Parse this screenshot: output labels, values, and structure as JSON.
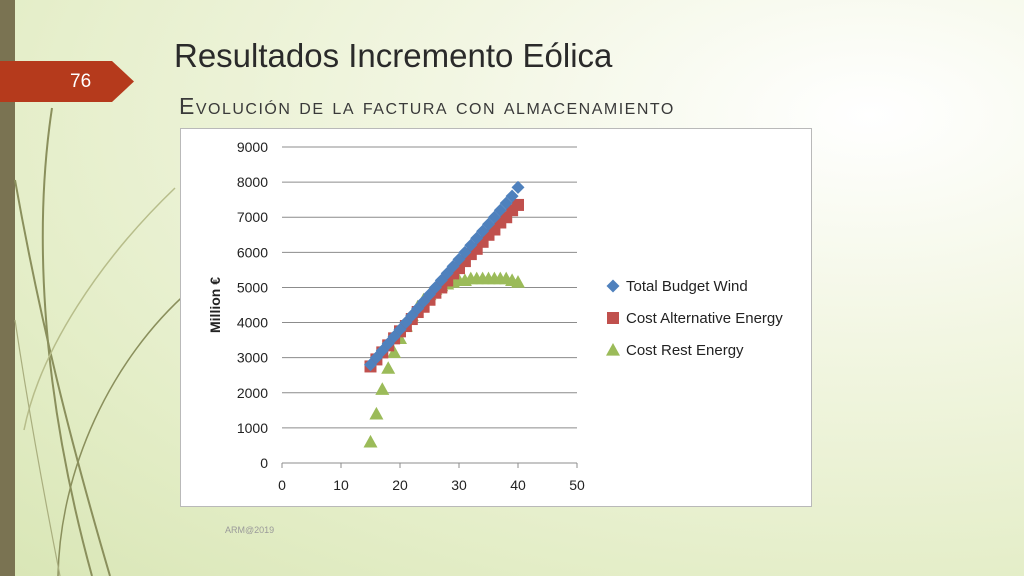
{
  "slide": {
    "number": "76",
    "title": "Resultados Incremento Eólica",
    "subtitle": "Evolución de la factura con almacenamiento",
    "footer": "ARM@2019"
  },
  "colors": {
    "accent": "#b53a1c",
    "sidebar": "#7a7352",
    "deco_lines": "#8a8f5c"
  },
  "chart_data": {
    "type": "scatter",
    "title": "",
    "xlabel": "",
    "ylabel": "Million €",
    "xlim": [
      0,
      50
    ],
    "ylim": [
      0,
      9000
    ],
    "xticks": [
      0,
      10,
      20,
      30,
      40,
      50
    ],
    "yticks": [
      0,
      1000,
      2000,
      3000,
      4000,
      5000,
      6000,
      7000,
      8000,
      9000
    ],
    "grid": "horizontal",
    "legend": "right",
    "x": [
      15,
      16,
      17,
      18,
      19,
      20,
      21,
      22,
      23,
      24,
      25,
      26,
      27,
      28,
      29,
      30,
      31,
      32,
      33,
      34,
      35,
      36,
      37,
      38,
      39,
      40
    ],
    "series": [
      {
        "name": "Total Budget Wind",
        "marker": "diamond",
        "color": "#4f81bd",
        "values": [
          2800,
          3000,
          3200,
          3400,
          3600,
          3800,
          4000,
          4200,
          4400,
          4600,
          4800,
          5000,
          5200,
          5400,
          5600,
          5800,
          6000,
          6200,
          6400,
          6600,
          6800,
          7000,
          7200,
          7400,
          7600,
          7850
        ]
      },
      {
        "name": "Cost Alternative Energy",
        "marker": "square",
        "color": "#c0504d",
        "values": [
          2750,
          2950,
          3150,
          3350,
          3550,
          3750,
          3900,
          4100,
          4300,
          4450,
          4650,
          4850,
          5000,
          5200,
          5400,
          5550,
          5750,
          5950,
          6100,
          6300,
          6500,
          6650,
          6850,
          7000,
          7200,
          7350
        ]
      },
      {
        "name": "Cost Rest Energy",
        "marker": "triangle",
        "color": "#9bbb59",
        "values": [
          600,
          1400,
          2100,
          2700,
          3150,
          3550,
          3900,
          4200,
          4450,
          4650,
          4800,
          4950,
          5050,
          5100,
          5150,
          5200,
          5200,
          5250,
          5250,
          5250,
          5250,
          5250,
          5250,
          5250,
          5200,
          5150
        ]
      }
    ]
  }
}
